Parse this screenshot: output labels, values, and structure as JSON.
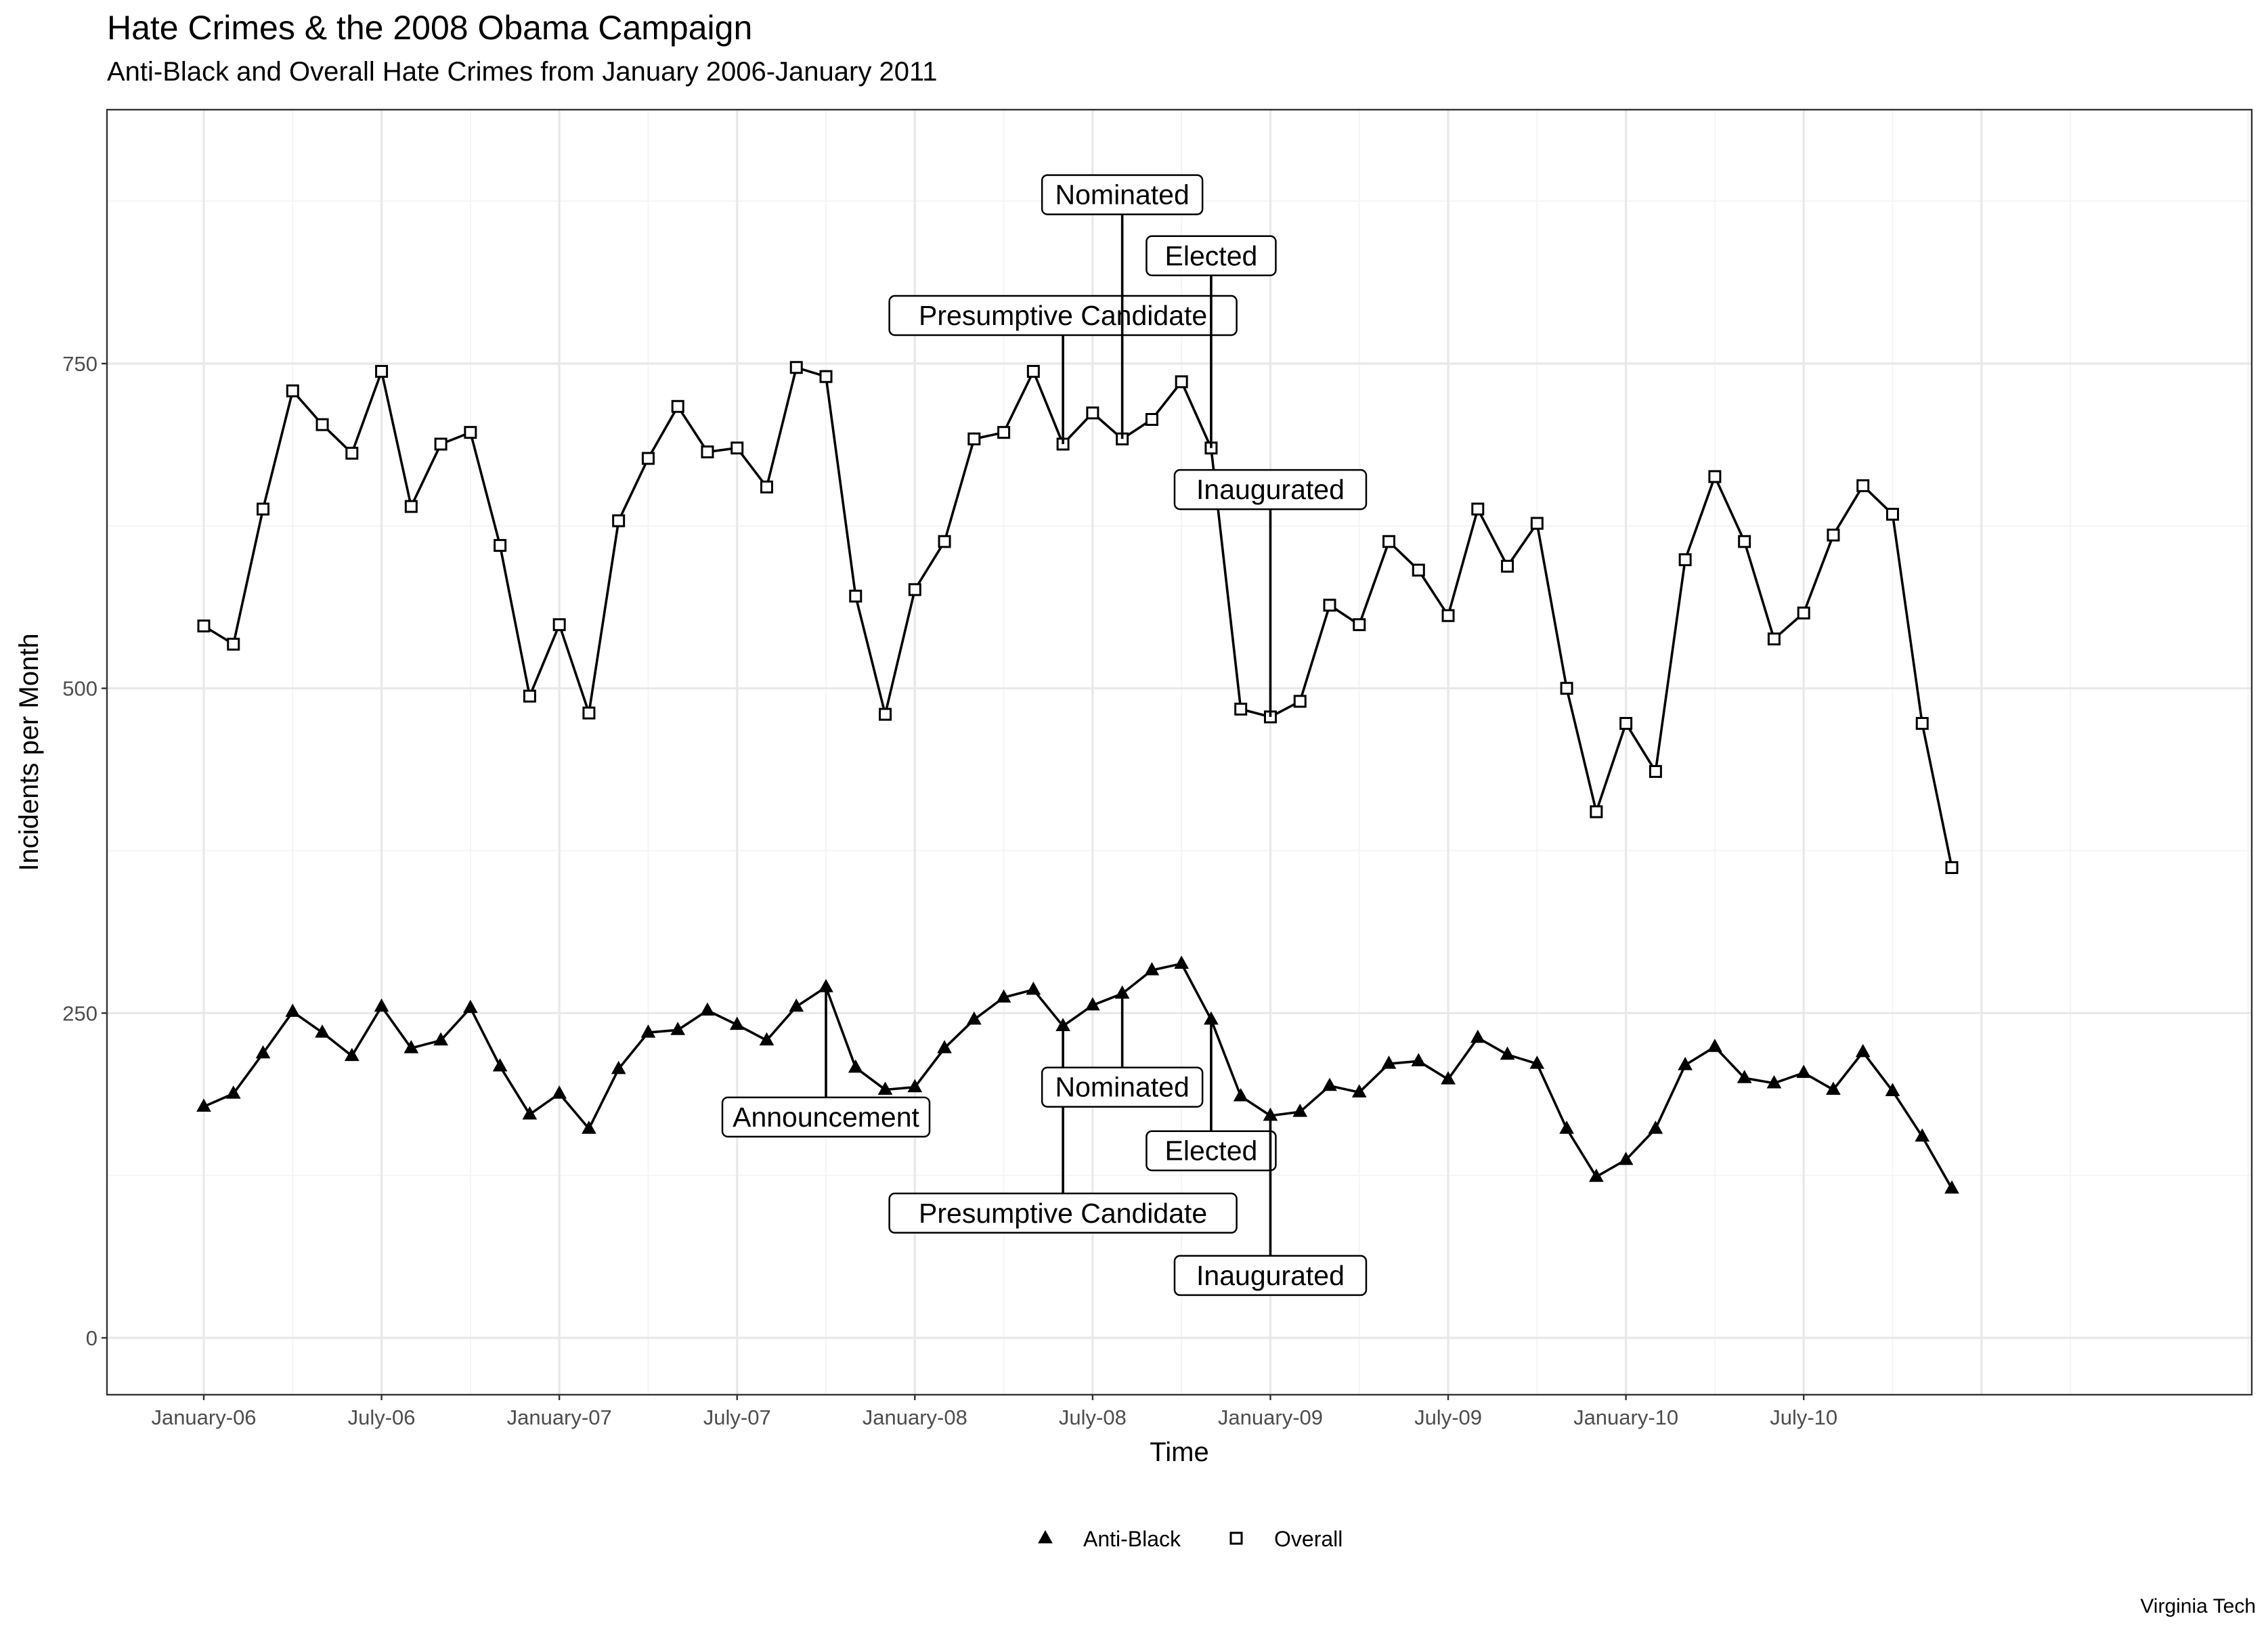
{
  "chart_data": {
    "type": "line",
    "title": "Hate Crimes & the 2008 Obama Campaign",
    "subtitle": "Anti-Black and Overall Hate Crimes from January 2006-January 2011",
    "xlabel": "Time",
    "ylabel": "Incidents per Month",
    "caption": "Virginia Tech",
    "ylim": [
      -40,
      940
    ],
    "yticks": [
      0,
      250,
      500,
      750
    ],
    "xticks": [
      "January-06",
      "July-06",
      "January-07",
      "July-07",
      "January-08",
      "July-08",
      "January-09",
      "July-09",
      "January-10",
      "July-10"
    ],
    "x_start": "2006-01",
    "x_end": "2011-12",
    "series": [
      {
        "name": "Anti-Black",
        "marker": "triangle",
        "x": [
          "2006-01",
          "2006-02",
          "2006-03",
          "2006-04",
          "2006-05",
          "2006-06",
          "2006-07",
          "2006-08",
          "2006-09",
          "2006-10",
          "2006-11",
          "2006-12",
          "2007-01",
          "2007-02",
          "2007-03",
          "2007-04",
          "2007-05",
          "2007-06",
          "2007-07",
          "2007-08",
          "2007-09",
          "2007-10",
          "2007-11",
          "2007-12",
          "2008-01",
          "2008-02",
          "2008-03",
          "2008-04",
          "2008-05",
          "2008-06",
          "2008-07",
          "2008-08",
          "2008-09",
          "2008-10",
          "2008-11",
          "2008-12",
          "2009-01",
          "2009-02",
          "2009-03",
          "2009-04",
          "2009-05",
          "2009-06",
          "2009-07",
          "2009-08",
          "2009-09",
          "2009-10",
          "2009-11",
          "2009-12",
          "2010-01",
          "2010-02",
          "2010-03",
          "2010-04",
          "2010-05",
          "2010-06",
          "2010-07",
          "2010-08",
          "2010-09",
          "2010-10",
          "2010-11",
          "2010-12"
        ],
        "values": [
          178,
          188,
          219,
          251,
          235,
          217,
          255,
          223,
          229,
          254,
          209,
          172,
          188,
          161,
          207,
          235,
          237,
          252,
          241,
          229,
          255,
          270,
          208,
          191,
          193,
          223,
          245,
          262,
          268,
          240,
          256,
          265,
          283,
          288,
          245,
          186,
          171,
          174,
          194,
          189,
          211,
          213,
          199,
          231,
          218,
          211,
          161,
          124,
          137,
          161,
          210,
          224,
          200,
          196,
          204,
          191,
          220,
          190,
          155,
          115
        ]
      },
      {
        "name": "Overall",
        "marker": "square",
        "x": [
          "2006-01",
          "2006-02",
          "2006-03",
          "2006-04",
          "2006-05",
          "2006-06",
          "2006-07",
          "2006-08",
          "2006-09",
          "2006-10",
          "2006-11",
          "2006-12",
          "2007-01",
          "2007-02",
          "2007-03",
          "2007-04",
          "2007-05",
          "2007-06",
          "2007-07",
          "2007-08",
          "2007-09",
          "2007-10",
          "2007-11",
          "2007-12",
          "2008-01",
          "2008-02",
          "2008-03",
          "2008-04",
          "2008-05",
          "2008-06",
          "2008-07",
          "2008-08",
          "2008-09",
          "2008-10",
          "2008-11",
          "2008-12",
          "2009-01",
          "2009-02",
          "2009-03",
          "2009-04",
          "2009-05",
          "2009-06",
          "2009-07",
          "2009-08",
          "2009-09",
          "2009-10",
          "2009-11",
          "2009-12",
          "2010-01",
          "2010-02",
          "2010-03",
          "2010-04",
          "2010-05",
          "2010-06",
          "2010-07",
          "2010-08",
          "2010-09",
          "2010-10",
          "2010-11",
          "2010-12"
        ],
        "values": [
          548,
          534,
          638,
          729,
          703,
          681,
          744,
          640,
          688,
          697,
          610,
          494,
          549,
          481,
          629,
          677,
          717,
          682,
          685,
          655,
          747,
          740,
          571,
          480,
          576,
          613,
          692,
          697,
          744,
          688,
          712,
          692,
          707,
          736,
          685,
          484,
          478,
          490,
          564,
          549,
          613,
          591,
          556,
          638,
          594,
          627,
          500,
          405,
          473,
          436,
          599,
          663,
          613,
          538,
          558,
          618,
          656,
          634,
          473,
          362
        ]
      }
    ],
    "annotations": [
      {
        "label": "Announcement",
        "series": "Anti-Black",
        "x": "2007-10",
        "line_from": 270,
        "line_to": 183,
        "label_y": 170
      },
      {
        "label": "Presumptive Candidate",
        "series": "Anti-Black",
        "x": "2008-06",
        "line_from": 240,
        "line_to": 110,
        "label_y": 96
      },
      {
        "label": "Nominated",
        "series": "Anti-Black",
        "x": "2008-08",
        "line_from": 265,
        "line_to": 208,
        "label_y": 193
      },
      {
        "label": "Elected",
        "series": "Anti-Black",
        "x": "2008-11",
        "line_from": 245,
        "line_to": 158,
        "label_y": 144
      },
      {
        "label": "Inaugurated",
        "series": "Anti-Black",
        "x": "2009-01",
        "line_from": 171,
        "line_to": 63,
        "label_y": 48
      },
      {
        "label": "Presumptive Candidate",
        "series": "Overall",
        "x": "2008-06",
        "line_from": 688,
        "line_to": 800,
        "label_y": 787
      },
      {
        "label": "Nominated",
        "series": "Overall",
        "x": "2008-08",
        "line_from": 692,
        "line_to": 893,
        "label_y": 880
      },
      {
        "label": "Elected",
        "series": "Overall",
        "x": "2008-11",
        "line_from": 685,
        "line_to": 847,
        "label_y": 833
      },
      {
        "label": "Inaugurated",
        "series": "Overall",
        "x": "2009-01",
        "line_from": 478,
        "line_to": 665,
        "label_y": 653
      }
    ],
    "legend": {
      "position": "bottom",
      "entries": [
        "Anti-Black",
        "Overall"
      ]
    },
    "grid": true
  }
}
